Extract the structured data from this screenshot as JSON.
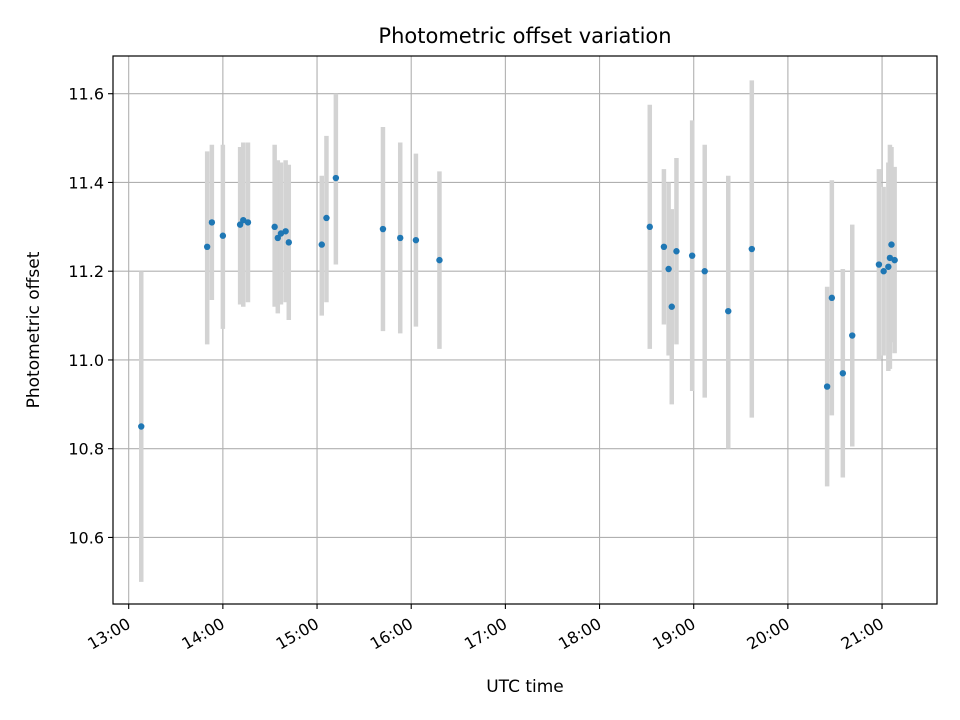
{
  "chart_data": {
    "type": "scatter",
    "title": "Photometric offset variation",
    "xlabel": "UTC time",
    "ylabel": "Photometric offset",
    "xlim": [
      "12:50",
      "21:35"
    ],
    "ylim": [
      10.45,
      11.685
    ],
    "x_ticks": [
      "13:00",
      "14:00",
      "15:00",
      "16:00",
      "17:00",
      "18:00",
      "19:00",
      "20:00",
      "21:00"
    ],
    "y_ticks": [
      10.6,
      10.8,
      11.0,
      11.2,
      11.4,
      11.6
    ],
    "grid": true,
    "colors": {
      "point": "#1f77b4",
      "error_bar": "#d3d3d3",
      "grid": "#b0b0b0"
    },
    "points": [
      {
        "x": "13:08",
        "y": 10.85,
        "low": 10.5,
        "high": 11.2
      },
      {
        "x": "13:50",
        "y": 11.255,
        "low": 11.035,
        "high": 11.47
      },
      {
        "x": "13:53",
        "y": 11.31,
        "low": 11.135,
        "high": 11.485
      },
      {
        "x": "14:00",
        "y": 11.28,
        "low": 11.07,
        "high": 11.485
      },
      {
        "x": "14:11",
        "y": 11.305,
        "low": 11.125,
        "high": 11.48
      },
      {
        "x": "14:13",
        "y": 11.315,
        "low": 11.12,
        "high": 11.49
      },
      {
        "x": "14:16",
        "y": 11.31,
        "low": 11.13,
        "high": 11.49
      },
      {
        "x": "14:33",
        "y": 11.3,
        "low": 11.12,
        "high": 11.485
      },
      {
        "x": "14:35",
        "y": 11.275,
        "low": 11.105,
        "high": 11.45
      },
      {
        "x": "14:37",
        "y": 11.285,
        "low": 11.125,
        "high": 11.445
      },
      {
        "x": "14:40",
        "y": 11.29,
        "low": 11.13,
        "high": 11.45
      },
      {
        "x": "14:42",
        "y": 11.265,
        "low": 11.09,
        "high": 11.44
      },
      {
        "x": "15:03",
        "y": 11.26,
        "low": 11.1,
        "high": 11.415
      },
      {
        "x": "15:06",
        "y": 11.32,
        "low": 11.13,
        "high": 11.505
      },
      {
        "x": "15:12",
        "y": 11.41,
        "low": 11.215,
        "high": 11.6
      },
      {
        "x": "15:42",
        "y": 11.295,
        "low": 11.065,
        "high": 11.525
      },
      {
        "x": "15:53",
        "y": 11.275,
        "low": 11.06,
        "high": 11.49
      },
      {
        "x": "16:03",
        "y": 11.27,
        "low": 11.075,
        "high": 11.465
      },
      {
        "x": "16:18",
        "y": 11.225,
        "low": 11.025,
        "high": 11.425
      },
      {
        "x": "18:32",
        "y": 11.3,
        "low": 11.025,
        "high": 11.575
      },
      {
        "x": "18:41",
        "y": 11.255,
        "low": 11.08,
        "high": 11.43
      },
      {
        "x": "18:44",
        "y": 11.205,
        "low": 11.01,
        "high": 11.4
      },
      {
        "x": "18:46",
        "y": 11.12,
        "low": 10.9,
        "high": 11.34
      },
      {
        "x": "18:49",
        "y": 11.245,
        "low": 11.035,
        "high": 11.455
      },
      {
        "x": "18:59",
        "y": 11.235,
        "low": 10.93,
        "high": 11.54
      },
      {
        "x": "19:07",
        "y": 11.2,
        "low": 10.915,
        "high": 11.485
      },
      {
        "x": "19:22",
        "y": 11.11,
        "low": 10.8,
        "high": 11.415
      },
      {
        "x": "19:37",
        "y": 11.25,
        "low": 10.87,
        "high": 11.63
      },
      {
        "x": "20:25",
        "y": 10.94,
        "low": 10.715,
        "high": 11.165
      },
      {
        "x": "20:28",
        "y": 11.14,
        "low": 10.875,
        "high": 11.405
      },
      {
        "x": "20:35",
        "y": 10.97,
        "low": 10.735,
        "high": 11.205
      },
      {
        "x": "20:41",
        "y": 11.055,
        "low": 10.805,
        "high": 11.305
      },
      {
        "x": "20:58",
        "y": 11.215,
        "low": 11.0,
        "high": 11.43
      },
      {
        "x": "21:01",
        "y": 11.2,
        "low": 11.01,
        "high": 11.39
      },
      {
        "x": "21:04",
        "y": 11.21,
        "low": 10.975,
        "high": 11.445
      },
      {
        "x": "21:05",
        "y": 11.23,
        "low": 10.98,
        "high": 11.485
      },
      {
        "x": "21:06",
        "y": 11.26,
        "low": 11.04,
        "high": 11.48
      },
      {
        "x": "21:08",
        "y": 11.225,
        "low": 11.015,
        "high": 11.435
      }
    ]
  }
}
